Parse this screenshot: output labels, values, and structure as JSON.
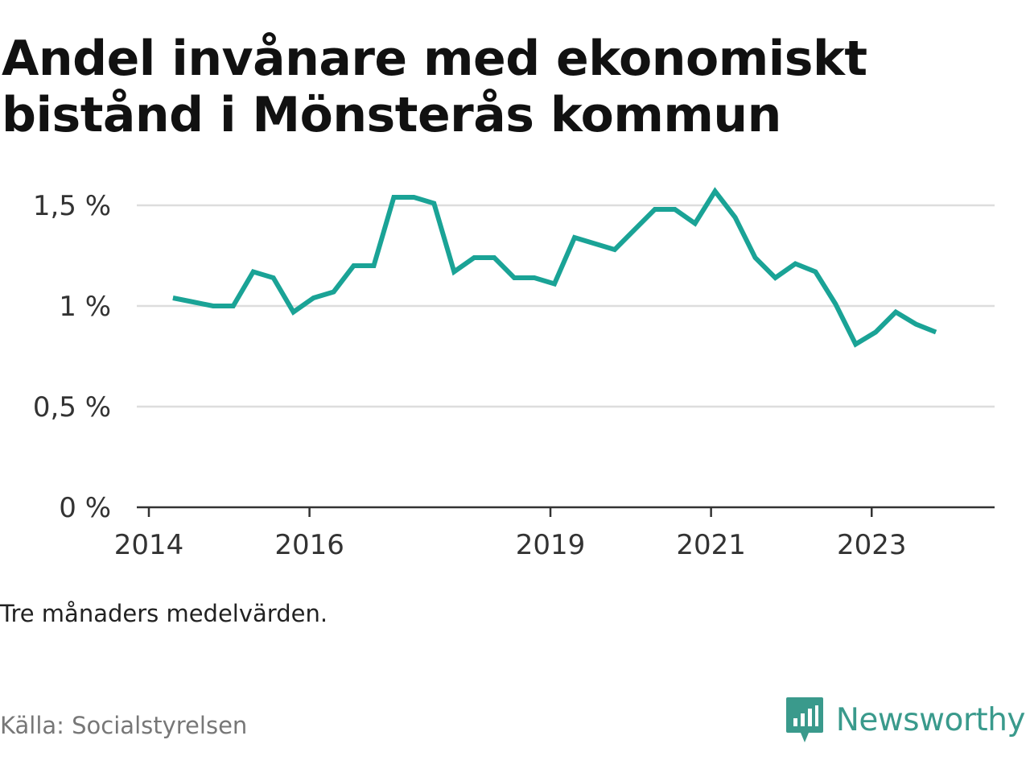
{
  "title": "Andel invånare med ekonomiskt bistånd i Mönsterås kommun",
  "note": "Tre månaders medelvärden.",
  "source": "Källa: Socialstyrelsen",
  "brand": {
    "name": "Newsworthy",
    "icon": "newsworthy-logo-icon",
    "color": "#3a9a8c"
  },
  "chart_data": {
    "type": "line",
    "title": "Andel invånare med ekonomiskt bistånd i Mönsterås kommun",
    "xlabel": "",
    "ylabel": "",
    "color": "#1aa396",
    "grid": true,
    "legend": "none",
    "ylim": [
      0,
      1.6
    ],
    "xlim": [
      2014,
      2024.25
    ],
    "yticks": [
      {
        "value": 0,
        "label": "0 %"
      },
      {
        "value": 0.5,
        "label": "0,5 %"
      },
      {
        "value": 1,
        "label": "1 %"
      },
      {
        "value": 1.5,
        "label": "1,5 %"
      }
    ],
    "xticks": [
      {
        "value": 2014,
        "label": "2014"
      },
      {
        "value": 2016,
        "label": "2016"
      },
      {
        "value": 2019,
        "label": "2019"
      },
      {
        "value": 2021,
        "label": "2021"
      },
      {
        "value": 2023,
        "label": "2023"
      }
    ],
    "series": [
      {
        "x": [
          2014.3,
          2014.55,
          2014.8,
          2015.05,
          2015.3,
          2015.55,
          2015.8,
          2016.05,
          2016.3,
          2016.55,
          2016.8,
          2017.05,
          2017.3,
          2017.55,
          2017.8,
          2018.05,
          2018.3,
          2018.55,
          2018.8,
          2019.05,
          2019.3,
          2019.55,
          2019.8,
          2020.05,
          2020.3,
          2020.55,
          2020.8,
          2021.05,
          2021.3,
          2021.55,
          2021.8,
          2022.05,
          2022.3,
          2022.55,
          2022.8,
          2023.05,
          2023.3,
          2023.55,
          2023.8
        ],
        "values": [
          1.04,
          1.02,
          1.0,
          1.0,
          1.17,
          1.14,
          0.97,
          1.04,
          1.07,
          1.2,
          1.2,
          1.54,
          1.54,
          1.51,
          1.17,
          1.24,
          1.24,
          1.14,
          1.14,
          1.11,
          1.34,
          1.31,
          1.28,
          1.38,
          1.48,
          1.48,
          1.41,
          1.57,
          1.44,
          1.24,
          1.14,
          1.21,
          1.17,
          1.01,
          0.81,
          0.87,
          0.97,
          0.91,
          0.87
        ]
      }
    ]
  }
}
